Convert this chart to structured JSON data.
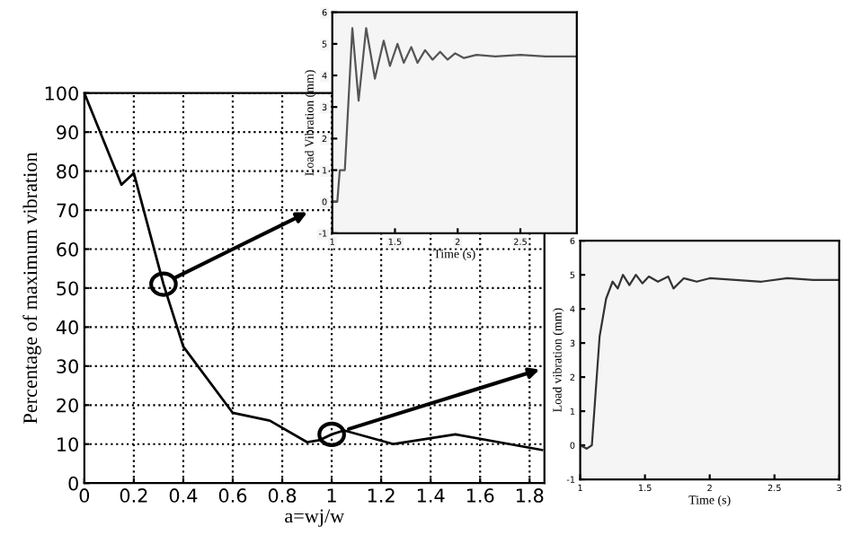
{
  "chart_data": [
    {
      "type": "line",
      "xlabel": "a=wj/w",
      "ylabel": "Percentage of maximum vibration",
      "color": "#000000",
      "x": [
        0,
        0.15,
        0.2,
        0.32,
        0.4,
        0.6,
        0.75,
        0.9,
        0.95,
        1.0,
        1.05,
        1.25,
        1.5,
        1.85
      ],
      "values": [
        100,
        76.5,
        79.5,
        51,
        35,
        18,
        16,
        10.5,
        11,
        12.5,
        13.5,
        10,
        12.5,
        8.5
      ],
      "xlim": [
        0,
        1.86
      ],
      "ylim": [
        0,
        100
      ],
      "xticks": [
        0,
        0.2,
        0.4,
        0.6,
        0.8,
        1,
        1.2,
        1.4,
        1.6,
        1.8
      ],
      "yticks": [
        0,
        10,
        20,
        30,
        40,
        50,
        60,
        70,
        80,
        90,
        100
      ],
      "grid": true,
      "line_style": "solid"
    },
    {
      "type": "line",
      "xlabel": "Time (s)",
      "ylabel": "Load Vibration (mm)",
      "color": "#555555",
      "x": [
        1,
        1.04,
        1.06,
        1.1,
        1.16,
        1.21,
        1.27,
        1.34,
        1.41,
        1.46,
        1.52,
        1.57,
        1.63,
        1.68,
        1.74,
        1.8,
        1.86,
        1.92,
        1.98,
        2.05,
        2.15,
        2.3,
        2.5,
        2.7,
        2.95
      ],
      "values": [
        0,
        0,
        1,
        1,
        5.5,
        3.2,
        5.5,
        3.9,
        5.1,
        4.3,
        5.0,
        4.4,
        4.9,
        4.4,
        4.8,
        4.5,
        4.75,
        4.5,
        4.7,
        4.55,
        4.65,
        4.6,
        4.65,
        4.6,
        4.6
      ],
      "xlim": [
        1,
        2.95
      ],
      "ylim": [
        -1,
        6
      ],
      "xticks": [
        1,
        1.5,
        2,
        2.5
      ],
      "yticks": [
        -1,
        0,
        1,
        2,
        3,
        4,
        5,
        6
      ],
      "grid": false
    },
    {
      "type": "line",
      "xlabel": "Time (s)",
      "ylabel": "Load vibration (mm)",
      "color": "#333333",
      "x": [
        1,
        1.05,
        1.09,
        1.15,
        1.2,
        1.25,
        1.29,
        1.33,
        1.38,
        1.43,
        1.48,
        1.53,
        1.6,
        1.68,
        1.72,
        1.8,
        1.9,
        2.0,
        2.2,
        2.4,
        2.6,
        2.8,
        3.0
      ],
      "values": [
        0,
        -0.1,
        0,
        3.2,
        4.3,
        4.8,
        4.6,
        5.0,
        4.7,
        5.0,
        4.75,
        4.95,
        4.8,
        4.95,
        4.6,
        4.9,
        4.8,
        4.9,
        4.85,
        4.8,
        4.9,
        4.85,
        4.85
      ],
      "xlim": [
        1,
        3
      ],
      "ylim": [
        -1,
        6
      ],
      "xticks": [
        1,
        1.5,
        2,
        2.5,
        3
      ],
      "yticks": [
        -1,
        0,
        1,
        2,
        3,
        4,
        5,
        6
      ],
      "grid": false
    }
  ]
}
